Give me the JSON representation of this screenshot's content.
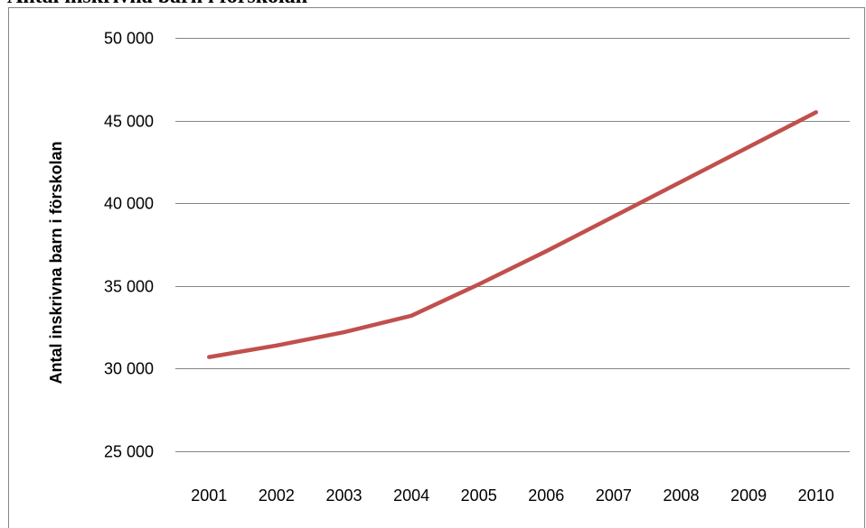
{
  "chart_data": {
    "type": "line",
    "title": "Antal inskrivna barn i förskolan",
    "xlabel": "",
    "ylabel": "Antal inskrivna barn i förskolan",
    "categories": [
      "2001",
      "2002",
      "2003",
      "2004",
      "2005",
      "2006",
      "2007",
      "2008",
      "2009",
      "2010"
    ],
    "series": [
      {
        "values": [
          30700,
          31400,
          32200,
          33200,
          35100,
          37100,
          39200,
          41300,
          43400,
          45500
        ]
      }
    ],
    "ylim": [
      25000,
      50000
    ],
    "y_ticks": [
      25000,
      30000,
      35000,
      40000,
      45000,
      50000
    ],
    "y_tick_labels": [
      "25 000",
      "30 000",
      "35 000",
      "40 000",
      "45 000",
      "50 000"
    ],
    "grid": "horizontal",
    "line_color": "#C0504D",
    "gridline_color": "#868686"
  }
}
